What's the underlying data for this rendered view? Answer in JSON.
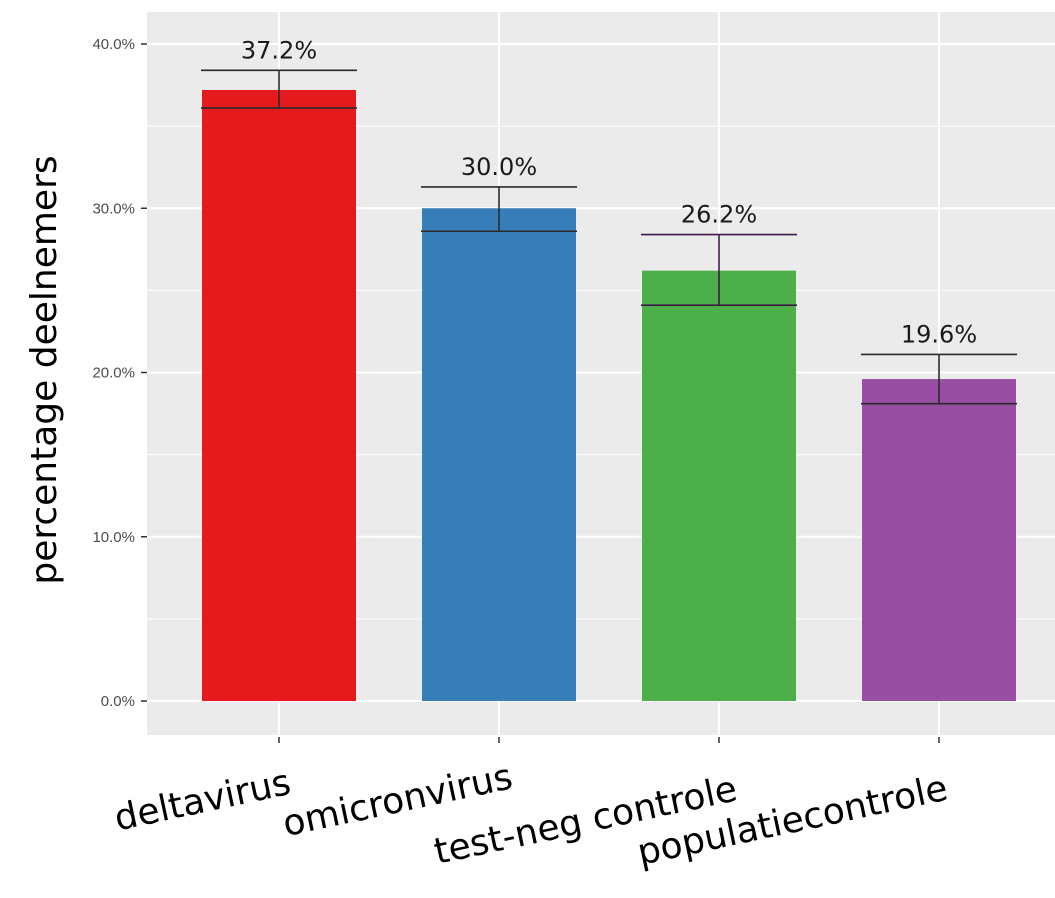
{
  "chart_data": {
    "type": "bar",
    "ylabel": "percentage deelnemers",
    "xlabel": "",
    "ylim": [
      0,
      42
    ],
    "y_ticks": [
      0,
      10,
      20,
      30,
      40
    ],
    "y_tick_labels": [
      "0.0%",
      "10.0%",
      "20.0%",
      "30.0%",
      "40.0%"
    ],
    "grid": true,
    "legend": "none",
    "categories": [
      "deltavirus",
      "omicronvirus",
      "test-neg controle",
      "populatiecontrole"
    ],
    "values": [
      37.2,
      30.0,
      26.2,
      19.6
    ],
    "data_labels": [
      "37.2%",
      "30.0%",
      "26.2%",
      "19.6%"
    ],
    "error_low": [
      36.1,
      28.6,
      24.1,
      18.1
    ],
    "error_high": [
      38.4,
      31.3,
      28.4,
      21.1
    ],
    "colors": [
      "#e41a1c",
      "#377eb8",
      "#4daf4a",
      "#984ea3"
    ],
    "panel_background": "#ebebeb",
    "grid_color": "#ffffff"
  }
}
